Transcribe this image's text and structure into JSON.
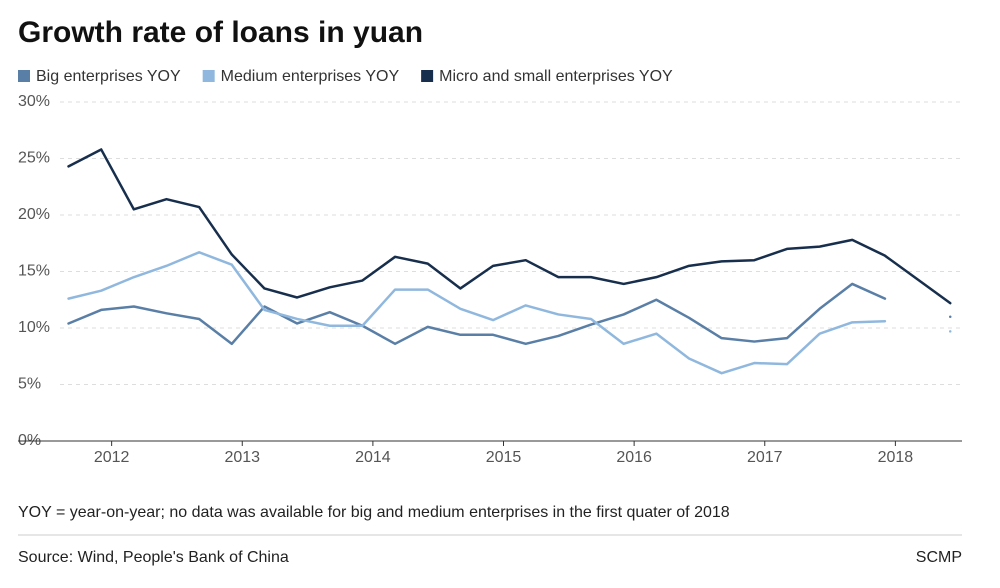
{
  "chart_data": {
    "type": "line",
    "title": "Growth rate of loans in yuan",
    "note": "YOY = year-on-year; no data was available for big and medium enterprises in the first quater of 2018",
    "source": "Source: Wind, People's Bank of China",
    "credit": "SCMP",
    "x": [
      2011.67,
      2011.92,
      2012.17,
      2012.42,
      2012.67,
      2012.92,
      2013.17,
      2013.42,
      2013.67,
      2013.92,
      2014.17,
      2014.42,
      2014.67,
      2014.92,
      2015.17,
      2015.42,
      2015.67,
      2015.92,
      2016.17,
      2016.42,
      2016.67,
      2016.92,
      2017.17,
      2017.42,
      2017.67,
      2017.92,
      2018.17,
      2018.42
    ],
    "xlim": [
      2011.62,
      2018.51
    ],
    "xticks": [
      2012,
      2013,
      2014,
      2015,
      2016,
      2017,
      2018
    ],
    "ylim": [
      0,
      30
    ],
    "yticks": [
      {
        "value": 0,
        "label": "0%"
      },
      {
        "value": 5,
        "label": "5%"
      },
      {
        "value": 10,
        "label": "10%"
      },
      {
        "value": 15,
        "label": "15%"
      },
      {
        "value": 20,
        "label": "20%"
      },
      {
        "value": 25,
        "label": "25%"
      },
      {
        "value": 30,
        "label": "30%"
      }
    ],
    "grid": true,
    "legend": "top",
    "series": [
      {
        "name": "Big enterprises YOY",
        "color": "#5a7fa6",
        "values": [
          10.4,
          11.6,
          11.9,
          11.3,
          10.8,
          8.6,
          11.9,
          10.4,
          11.4,
          10.2,
          8.6,
          10.1,
          9.4,
          9.4,
          8.6,
          9.3,
          10.3,
          11.2,
          12.5,
          10.9,
          9.1,
          8.8,
          9.1,
          11.7,
          13.9,
          12.6,
          null,
          11.0
        ]
      },
      {
        "name": "Medium enterprises YOY",
        "color": "#90b8de",
        "values": [
          12.6,
          13.3,
          14.5,
          15.5,
          16.7,
          15.6,
          11.6,
          10.8,
          10.2,
          10.2,
          13.4,
          13.4,
          11.7,
          10.7,
          12.0,
          11.2,
          10.8,
          8.6,
          9.5,
          7.3,
          6.0,
          6.9,
          6.8,
          9.5,
          10.5,
          10.6,
          null,
          9.7
        ]
      },
      {
        "name": "Micro and small enterprises YOY",
        "color": "#172f4d",
        "values": [
          24.3,
          25.8,
          20.5,
          21.4,
          20.7,
          16.5,
          13.5,
          12.7,
          13.6,
          14.2,
          16.3,
          15.7,
          13.5,
          15.5,
          16.0,
          14.5,
          14.5,
          13.9,
          14.5,
          15.5,
          15.9,
          16.0,
          17.0,
          17.2,
          17.8,
          16.4,
          14.3,
          12.2
        ]
      }
    ]
  }
}
